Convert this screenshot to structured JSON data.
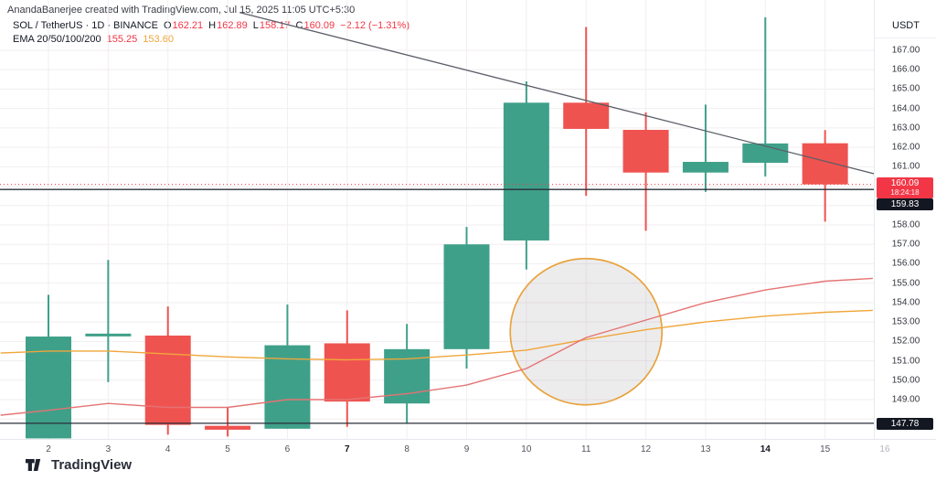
{
  "watermark": "AnandaBanerjee created with TradingView.com, Jul 15, 2025 11:05 UTC+5:30",
  "legend": {
    "title": "SOL / TetherUS · 1D · BINANCE",
    "o_label": "O",
    "o": "162.21",
    "h_label": "H",
    "h": "162.89",
    "l_label": "L",
    "l": "158.17",
    "c_label": "C",
    "c": "160.09",
    "change": "−2.12 (−1.31%)",
    "ema_label": "EMA 20/50/100/200",
    "ema_fast_value": "155.25",
    "ema_slow_value": "153.60"
  },
  "price_axis": {
    "unit": "USDT",
    "ticks": [
      "167.00",
      "166.00",
      "165.00",
      "164.00",
      "163.00",
      "162.00",
      "161.00",
      "158.00",
      "157.00",
      "156.00",
      "155.00",
      "154.00",
      "153.00",
      "152.00",
      "151.00",
      "150.00",
      "149.00"
    ]
  },
  "time_axis": {
    "labels": [
      {
        "text": "2"
      },
      {
        "text": "3"
      },
      {
        "text": "4"
      },
      {
        "text": "5"
      },
      {
        "text": "6"
      },
      {
        "text": "7",
        "bold": true
      },
      {
        "text": "8"
      },
      {
        "text": "9"
      },
      {
        "text": "10"
      },
      {
        "text": "11"
      },
      {
        "text": "12"
      },
      {
        "text": "13"
      },
      {
        "text": "14",
        "bold": true
      },
      {
        "text": "15"
      },
      {
        "text": "16",
        "muted": true
      }
    ]
  },
  "footer": {
    "logo_text": "TradingView"
  },
  "colors": {
    "up": "#3fa089",
    "down": "#ef5350",
    "accent_red": "#f23645",
    "ema_fast_red": "#e57373",
    "ema_slow_orange": "#f0a63a",
    "circle_stroke": "#e8a33d",
    "circle_fill": "rgba(140,138,142,0.16)",
    "trendline": "#5b5e68",
    "hline_black": "#2a2e39",
    "badge_black": "#131722",
    "grid": "#f2eef1"
  },
  "chart_data": {
    "type": "candlestick",
    "title": "SOL / TetherUS · 1D · BINANCE",
    "month": "Jul 2025",
    "ylabel": "USDT",
    "price_range_visible": [
      147.0,
      168.9
    ],
    "grid": "on",
    "candles": [
      {
        "date": "2",
        "o": 147.0,
        "h": 154.4,
        "l": 147.0,
        "c": 152.25
      },
      {
        "date": "3",
        "o": 152.3,
        "h": 156.2,
        "l": 149.9,
        "c": 152.4
      },
      {
        "date": "4",
        "o": 152.3,
        "h": 153.8,
        "l": 147.2,
        "c": 147.7
      },
      {
        "date": "5",
        "o": 147.65,
        "h": 148.6,
        "l": 147.1,
        "c": 147.45
      },
      {
        "date": "6",
        "o": 147.5,
        "h": 153.9,
        "l": 147.5,
        "c": 151.8
      },
      {
        "date": "7",
        "o": 151.9,
        "h": 153.6,
        "l": 147.6,
        "c": 148.9
      },
      {
        "date": "8",
        "o": 148.8,
        "h": 152.9,
        "l": 147.8,
        "c": 151.6
      },
      {
        "date": "9",
        "o": 151.6,
        "h": 157.9,
        "l": 150.6,
        "c": 157.0
      },
      {
        "date": "10",
        "o": 157.2,
        "h": 165.4,
        "l": 155.7,
        "c": 164.3
      },
      {
        "date": "11",
        "o": 164.3,
        "h": 168.2,
        "l": 159.5,
        "c": 162.95
      },
      {
        "date": "12",
        "o": 162.9,
        "h": 163.8,
        "l": 157.7,
        "c": 160.7
      },
      {
        "date": "13",
        "o": 160.7,
        "h": 164.2,
        "l": 159.7,
        "c": 161.25
      },
      {
        "date": "14",
        "o": 161.2,
        "h": 168.7,
        "l": 160.5,
        "c": 162.2
      },
      {
        "date": "15",
        "o": 162.21,
        "h": 162.89,
        "l": 158.17,
        "c": 160.09
      }
    ],
    "ema_fast_points": [
      [
        -0.8,
        148.2
      ],
      [
        0,
        148.45
      ],
      [
        1,
        148.8
      ],
      [
        2,
        148.6
      ],
      [
        3,
        148.6
      ],
      [
        4,
        149.0
      ],
      [
        5,
        149.0
      ],
      [
        6,
        149.3
      ],
      [
        7,
        149.75
      ],
      [
        8,
        150.6
      ],
      [
        9,
        152.2
      ],
      [
        10,
        153.1
      ],
      [
        11,
        154.0
      ],
      [
        12,
        154.65
      ],
      [
        13,
        155.1
      ],
      [
        13.8,
        155.25
      ]
    ],
    "ema_slow_points": [
      [
        -0.8,
        151.4
      ],
      [
        0,
        151.5
      ],
      [
        1,
        151.5
      ],
      [
        2,
        151.35
      ],
      [
        3,
        151.2
      ],
      [
        4,
        151.1
      ],
      [
        5,
        151.05
      ],
      [
        6,
        151.1
      ],
      [
        7,
        151.3
      ],
      [
        8,
        151.55
      ],
      [
        9,
        152.1
      ],
      [
        10,
        152.6
      ],
      [
        11,
        153.0
      ],
      [
        12,
        153.3
      ],
      [
        13,
        153.5
      ],
      [
        13.8,
        153.6
      ]
    ],
    "current_price_line": {
      "price": 160.09,
      "label": "160.09",
      "countdown": "18:24:18"
    },
    "horizontal_lines": [
      {
        "price": 159.83,
        "label": "159.83"
      },
      {
        "price": 147.78,
        "label": "147.78"
      }
    ],
    "trendline": {
      "from": {
        "index": 3.2,
        "price": 168.95
      },
      "to": {
        "index": 14.0,
        "price": 160.5
      }
    },
    "ellipse": {
      "center_index": 9.0,
      "center_price": 152.5,
      "rx_days": 1.27,
      "ry_price": 3.77
    }
  }
}
